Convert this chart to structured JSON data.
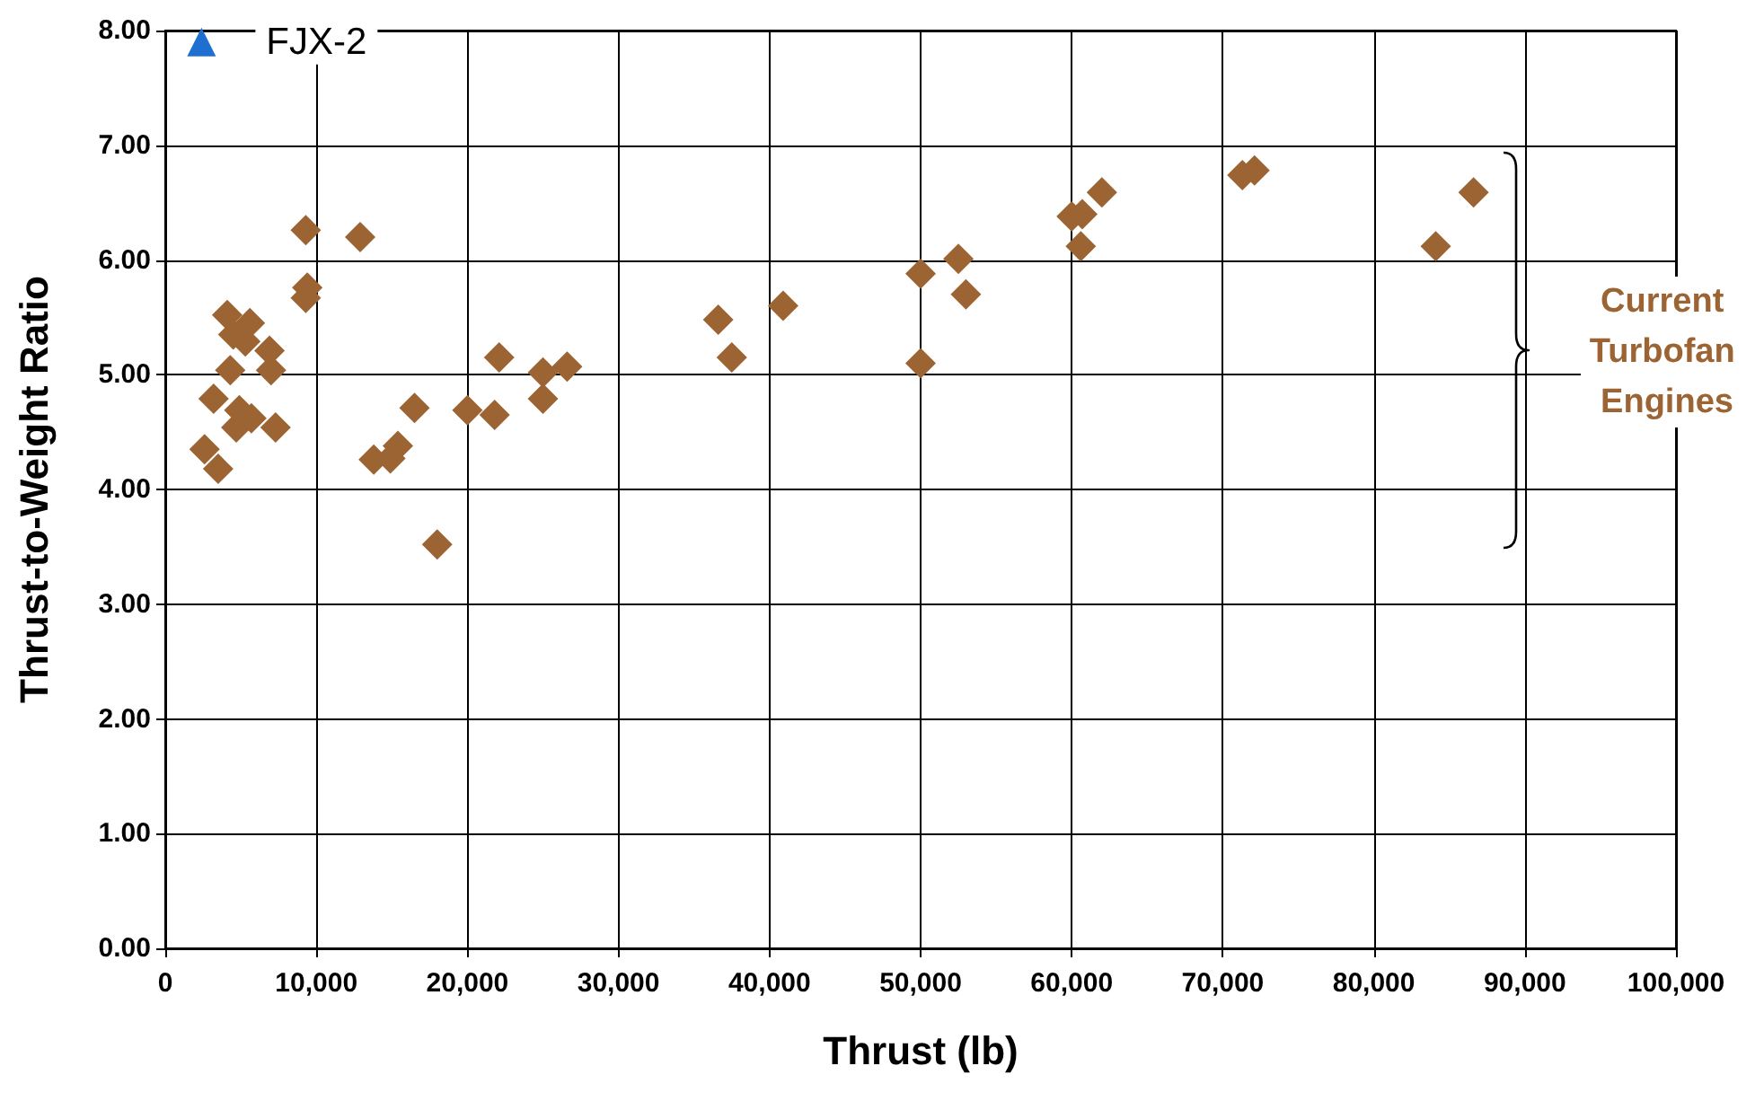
{
  "chart_data": {
    "type": "scatter",
    "xlabel": "Thrust (lb)",
    "ylabel": "Thrust-to-Weight Ratio",
    "xlim": [
      0,
      100000
    ],
    "xticks": [
      0,
      {
        "value": 10000,
        "label": "10,000"
      },
      {
        "value": 20000,
        "label": "20,000"
      },
      {
        "value": 30000,
        "label": "30,000"
      },
      {
        "value": 40000,
        "label": "40,000"
      },
      {
        "value": 50000,
        "label": "50,000"
      },
      {
        "value": 60000,
        "label": "60,000"
      },
      {
        "value": 70000,
        "label": "70,000"
      },
      {
        "value": 80000,
        "label": "80,000"
      },
      {
        "value": 90000,
        "label": "90,000"
      },
      {
        "value": 100000,
        "label": "100,000"
      }
    ],
    "ylim": [
      0,
      8
    ],
    "yticks": [
      {
        "value": 0,
        "label": "0.00"
      },
      {
        "value": 1,
        "label": "1.00"
      },
      {
        "value": 2,
        "label": "2.00"
      },
      {
        "value": 3,
        "label": "3.00"
      },
      {
        "value": 4,
        "label": "4.00"
      },
      {
        "value": 5,
        "label": "5.00"
      },
      {
        "value": 6,
        "label": "6.00"
      },
      {
        "value": 7,
        "label": "7.00"
      },
      {
        "value": 8,
        "label": "8.00"
      }
    ],
    "grid": true,
    "legend": false,
    "series": [
      {
        "color": "#9c6433",
        "marker": "diamond",
        "x": [
          2600,
          3500,
          3200,
          4100,
          4300,
          4500,
          4700,
          4900,
          5300,
          5600,
          5700,
          6900,
          7000,
          7300,
          9300,
          9300,
          9400,
          12900,
          13800,
          14900,
          15400,
          16500,
          18000,
          20000,
          21800,
          22100,
          25000,
          25000,
          26600,
          36600,
          37500,
          40900,
          50000,
          50000,
          52500,
          53000,
          60000,
          60700,
          60600,
          62000,
          71300,
          72100,
          84100,
          86600
        ],
        "values": [
          4.35,
          4.18,
          4.79,
          5.52,
          5.04,
          5.35,
          4.54,
          4.69,
          5.29,
          5.45,
          4.62,
          5.21,
          5.04,
          4.54,
          6.26,
          5.67,
          5.76,
          6.2,
          4.26,
          4.27,
          4.38,
          4.71,
          3.52,
          4.69,
          4.65,
          5.15,
          5.02,
          4.79,
          5.07,
          5.48,
          5.15,
          5.6,
          5.88,
          5.1,
          6.01,
          5.7,
          6.38,
          6.4,
          6.12,
          6.59,
          6.74,
          6.78,
          6.12,
          6.59
        ]
      },
      {
        "name": "FJX-2",
        "color": "#1f6fd0",
        "marker": "triangle",
        "x": [
          2400
        ],
        "values": [
          7.9
        ]
      }
    ],
    "annotations": [
      "Current Turbofan Engines"
    ]
  }
}
